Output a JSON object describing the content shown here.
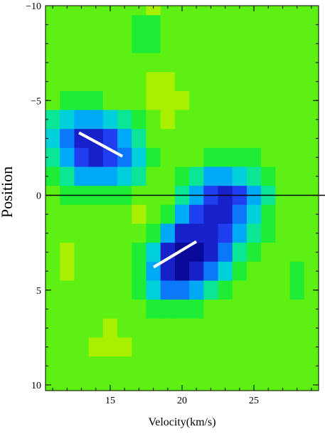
{
  "chart_data": {
    "type": "heatmap",
    "xlabel": "Velocity(km/s)",
    "ylabel": "Position",
    "x": [
      11,
      12,
      13,
      14,
      15,
      16,
      17,
      18,
      19,
      20,
      21,
      22,
      23,
      24,
      25,
      26,
      27,
      28,
      29
    ],
    "y": [
      -10,
      -9,
      -8,
      -7,
      -6,
      -5,
      -4,
      -3,
      -2,
      -1,
      0,
      1,
      2,
      3,
      4,
      5,
      6,
      7,
      8,
      9,
      10
    ],
    "z": [
      [
        2,
        2,
        2,
        2,
        2,
        2,
        2,
        1,
        2,
        2,
        2,
        2,
        2,
        2,
        2,
        2,
        2,
        2,
        2
      ],
      [
        2,
        2,
        2,
        2,
        2,
        2,
        3,
        3,
        2,
        2,
        2,
        2,
        2,
        2,
        2,
        2,
        2,
        2,
        2
      ],
      [
        2,
        2,
        2,
        2,
        2,
        2,
        3,
        3,
        2,
        2,
        2,
        2,
        2,
        2,
        2,
        2,
        2,
        2,
        2
      ],
      [
        2,
        2,
        2,
        2,
        2,
        2,
        2,
        2,
        2,
        2,
        2,
        2,
        2,
        2,
        2,
        2,
        2,
        2,
        2
      ],
      [
        2,
        2,
        2,
        2,
        2,
        2,
        2,
        1,
        1,
        2,
        2,
        2,
        2,
        2,
        2,
        2,
        2,
        2,
        2
      ],
      [
        2,
        3,
        3,
        3,
        2,
        2,
        2,
        1,
        1,
        1,
        2,
        2,
        2,
        2,
        2,
        2,
        2,
        2,
        2
      ],
      [
        4,
        5,
        6,
        6,
        5,
        4,
        3,
        2,
        1,
        2,
        2,
        2,
        2,
        2,
        2,
        2,
        2,
        2,
        2
      ],
      [
        5,
        7,
        9,
        9,
        8,
        6,
        4,
        2,
        2,
        2,
        2,
        2,
        2,
        2,
        2,
        2,
        2,
        2,
        2
      ],
      [
        4,
        6,
        8,
        9,
        8,
        7,
        5,
        3,
        2,
        2,
        2,
        3,
        3,
        3,
        3,
        2,
        2,
        2,
        2
      ],
      [
        3,
        4,
        6,
        6,
        6,
        5,
        4,
        2,
        2,
        3,
        4,
        6,
        6,
        5,
        4,
        3,
        2,
        2,
        2
      ],
      [
        2,
        3,
        3,
        3,
        3,
        3,
        2,
        2,
        2,
        4,
        6,
        8,
        9,
        8,
        6,
        4,
        2,
        2,
        2
      ],
      [
        2,
        2,
        2,
        2,
        2,
        2,
        1,
        2,
        3,
        6,
        8,
        9,
        9,
        7,
        5,
        3,
        2,
        2,
        2
      ],
      [
        2,
        2,
        2,
        2,
        2,
        2,
        2,
        3,
        6,
        9,
        9,
        9,
        8,
        6,
        4,
        3,
        2,
        2,
        2
      ],
      [
        2,
        1,
        2,
        2,
        2,
        2,
        3,
        5,
        9,
        10,
        10,
        9,
        7,
        4,
        3,
        2,
        2,
        2,
        2
      ],
      [
        2,
        1,
        2,
        2,
        2,
        2,
        3,
        6,
        9,
        10,
        9,
        7,
        5,
        3,
        2,
        2,
        2,
        3,
        2
      ],
      [
        2,
        2,
        2,
        2,
        2,
        2,
        3,
        5,
        7,
        7,
        6,
        4,
        3,
        2,
        2,
        2,
        2,
        3,
        2
      ],
      [
        2,
        2,
        2,
        2,
        2,
        2,
        2,
        3,
        3,
        3,
        3,
        2,
        2,
        2,
        2,
        2,
        2,
        2,
        2
      ],
      [
        2,
        2,
        2,
        2,
        1,
        2,
        2,
        2,
        2,
        2,
        2,
        2,
        2,
        2,
        2,
        2,
        2,
        2,
        2
      ],
      [
        2,
        2,
        2,
        1,
        1,
        1,
        2,
        2,
        2,
        2,
        2,
        2,
        2,
        2,
        2,
        2,
        2,
        2,
        2
      ],
      [
        2,
        2,
        2,
        2,
        2,
        2,
        2,
        2,
        2,
        2,
        2,
        2,
        2,
        2,
        2,
        2,
        2,
        2,
        2
      ],
      [
        2,
        2,
        2,
        2,
        2,
        2,
        2,
        2,
        2,
        2,
        2,
        2,
        2,
        2,
        2,
        2,
        2,
        2,
        2
      ]
    ],
    "colormap": [
      "#a8f000",
      "#22ee22",
      "#00e0d0",
      "#0099ff",
      "#2233ee",
      "#0a0a9a"
    ],
    "xlim": [
      10.5,
      29.5
    ],
    "ylim": [
      -10,
      10.3
    ],
    "y_inverted": true,
    "xticks": [
      15,
      20,
      25
    ],
    "yticks": [
      {
        "value": -10,
        "label": "−10"
      },
      {
        "value": -5,
        "label": "−5"
      },
      0,
      5,
      10
    ],
    "hlines": [
      {
        "y": 0,
        "color": "#000000"
      }
    ],
    "segments": [
      {
        "x": [
          12.83,
          15.85
        ],
        "y": [
          -3.3,
          -2.06
        ],
        "color": "#ffffff"
      },
      {
        "x": [
          18.02,
          20.99
        ],
        "y": [
          3.79,
          2.44
        ],
        "color": "#ffffff"
      }
    ]
  }
}
